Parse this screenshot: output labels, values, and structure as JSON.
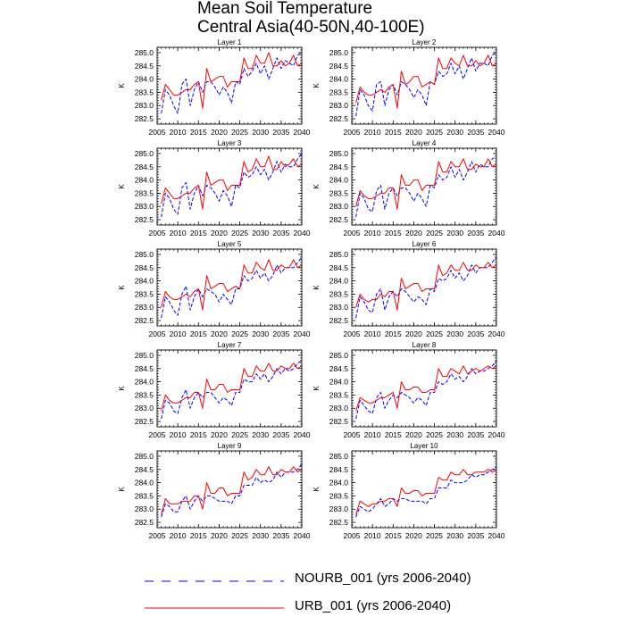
{
  "figure": {
    "title_line1": "Mean Soil Temperature",
    "title_line2": "Central Asia(40-50N,40-100E)"
  },
  "colors": {
    "nourb": "#0000ff",
    "urb": "#ff0000",
    "axis": "#000000"
  },
  "legend": [
    {
      "label": "NOURB_001 (yrs 2006-2040)",
      "color": "#0000ff",
      "style": "dashed"
    },
    {
      "label": "URB_001 (yrs 2006-2040)",
      "color": "#ff0000",
      "style": "solid"
    }
  ],
  "chart_data": {
    "type": "line",
    "x": [
      2006,
      2007,
      2008,
      2009,
      2010,
      2011,
      2012,
      2013,
      2014,
      2015,
      2016,
      2017,
      2018,
      2019,
      2020,
      2021,
      2022,
      2023,
      2024,
      2025,
      2026,
      2027,
      2028,
      2029,
      2030,
      2031,
      2032,
      2033,
      2034,
      2035,
      2036,
      2037,
      2038,
      2039,
      2040
    ],
    "xlim": [
      2005,
      2040
    ],
    "xticks": [
      2005,
      2010,
      2015,
      2020,
      2025,
      2030,
      2035,
      2040
    ],
    "ylim": [
      282.3,
      285.2
    ],
    "yticks": [
      282.5,
      283.0,
      283.5,
      284.0,
      284.5,
      285.0
    ],
    "ylabel": "K",
    "panels": [
      {
        "title": "Layer 1",
        "series": [
          {
            "name": "NOURB_001",
            "values": [
              282.7,
              283.6,
              283.4,
              283.0,
              282.7,
              283.8,
              284.0,
              283.0,
              283.6,
              283.9,
              283.5,
              283.9,
              283.9,
              283.7,
              283.4,
              283.7,
              283.5,
              283.1,
              283.9,
              283.8,
              284.4,
              284.1,
              284.3,
              284.6,
              284.2,
              284.5,
              284.0,
              284.4,
              284.8,
              284.4,
              284.7,
              284.6,
              284.5,
              284.9,
              285.0
            ]
          },
          {
            "name": "URB_001",
            "values": [
              283.2,
              283.8,
              283.6,
              283.4,
              283.4,
              283.5,
              283.6,
              283.6,
              283.8,
              283.9,
              282.9,
              284.4,
              283.9,
              284.0,
              284.1,
              284.1,
              283.7,
              283.9,
              283.9,
              283.9,
              284.8,
              284.4,
              284.4,
              284.9,
              284.6,
              284.6,
              285.0,
              284.5,
              284.5,
              284.7,
              284.5,
              284.6,
              284.9,
              284.5,
              284.6
            ]
          }
        ]
      },
      {
        "title": "Layer 2",
        "series": [
          {
            "name": "NOURB_001",
            "values": [
              282.6,
              283.6,
              283.4,
              283.0,
              282.8,
              283.8,
              283.9,
              283.0,
              283.6,
              283.8,
              283.4,
              283.9,
              283.8,
              283.6,
              283.3,
              283.6,
              283.4,
              283.0,
              283.9,
              283.8,
              284.3,
              284.1,
              284.2,
              284.6,
              284.2,
              284.5,
              284.0,
              284.4,
              284.8,
              284.3,
              284.6,
              284.6,
              284.5,
              284.9,
              285.0
            ]
          },
          {
            "name": "URB_001",
            "values": [
              283.1,
              283.7,
              283.5,
              283.4,
              283.4,
              283.5,
              283.6,
              283.5,
              283.7,
              283.8,
              282.9,
              284.3,
              283.8,
              283.9,
              284.1,
              284.1,
              283.7,
              283.8,
              283.9,
              283.8,
              284.8,
              284.4,
              284.4,
              284.8,
              284.6,
              284.5,
              284.9,
              284.5,
              284.5,
              284.7,
              284.5,
              284.6,
              284.9,
              284.5,
              284.6
            ]
          }
        ]
      },
      {
        "title": "Layer 3",
        "series": [
          {
            "name": "NOURB_001",
            "values": [
              282.6,
              283.5,
              283.3,
              282.9,
              282.7,
              283.7,
              283.9,
              282.9,
              283.5,
              283.8,
              283.4,
              283.8,
              283.7,
              283.5,
              283.2,
              283.6,
              283.4,
              283.0,
              283.8,
              283.7,
              284.3,
              284.1,
              284.2,
              284.5,
              284.2,
              284.4,
              284.0,
              284.3,
              284.7,
              284.3,
              284.6,
              284.5,
              284.5,
              284.8,
              285.0
            ]
          },
          {
            "name": "URB_001",
            "values": [
              283.1,
              283.7,
              283.5,
              283.3,
              283.3,
              283.4,
              283.5,
              283.5,
              283.7,
              283.8,
              282.9,
              284.3,
              283.8,
              283.9,
              284.0,
              284.0,
              283.6,
              283.8,
              283.8,
              283.8,
              284.7,
              284.3,
              284.4,
              284.8,
              284.5,
              284.5,
              284.9,
              284.4,
              284.4,
              284.7,
              284.5,
              284.6,
              284.8,
              284.5,
              284.6
            ]
          }
        ]
      },
      {
        "title": "Layer 4",
        "series": [
          {
            "name": "NOURB_001",
            "values": [
              282.6,
              283.5,
              283.3,
              282.9,
              282.8,
              283.6,
              283.8,
              282.9,
              283.5,
              283.7,
              283.4,
              283.7,
              283.7,
              283.5,
              283.2,
              283.5,
              283.3,
              283.0,
              283.8,
              283.7,
              284.2,
              284.0,
              284.1,
              284.5,
              284.1,
              284.4,
              284.0,
              284.3,
              284.7,
              284.3,
              284.6,
              284.5,
              284.5,
              284.8,
              284.9
            ]
          },
          {
            "name": "URB_001",
            "values": [
              283.0,
              283.6,
              283.4,
              283.3,
              283.3,
              283.4,
              283.5,
              283.5,
              283.7,
              283.7,
              282.9,
              284.2,
              283.8,
              283.8,
              284.0,
              284.0,
              283.6,
              283.8,
              283.8,
              283.8,
              284.7,
              284.3,
              284.3,
              284.7,
              284.5,
              284.5,
              284.8,
              284.4,
              284.4,
              284.6,
              284.5,
              284.5,
              284.8,
              284.5,
              284.6
            ]
          }
        ]
      },
      {
        "title": "Layer 5",
        "series": [
          {
            "name": "NOURB_001",
            "values": [
              282.6,
              283.4,
              283.2,
              282.9,
              282.7,
              283.5,
              283.8,
              282.9,
              283.4,
              283.7,
              283.4,
              283.7,
              283.6,
              283.5,
              283.2,
              283.5,
              283.3,
              283.1,
              283.7,
              283.7,
              284.2,
              284.0,
              284.1,
              284.4,
              284.1,
              284.3,
              284.0,
              284.2,
              284.6,
              284.3,
              284.5,
              284.5,
              284.5,
              284.7,
              284.9
            ]
          },
          {
            "name": "URB_001",
            "values": [
              283.0,
              283.6,
              283.4,
              283.3,
              283.3,
              283.4,
              283.5,
              283.4,
              283.6,
              283.7,
              282.9,
              284.2,
              283.7,
              283.8,
              283.9,
              283.9,
              283.6,
              283.7,
              283.8,
              283.7,
              284.6,
              284.3,
              284.3,
              284.7,
              284.5,
              284.4,
              284.8,
              284.4,
              284.4,
              284.6,
              284.5,
              284.5,
              284.8,
              284.5,
              284.6
            ]
          }
        ]
      },
      {
        "title": "Layer 6",
        "series": [
          {
            "name": "NOURB_001",
            "values": [
              282.6,
              283.4,
              283.2,
              282.9,
              282.8,
              283.5,
              283.7,
              282.9,
              283.4,
              283.6,
              283.4,
              283.7,
              283.6,
              283.4,
              283.2,
              283.4,
              283.3,
              283.1,
              283.7,
              283.6,
              284.1,
              284.0,
              284.1,
              284.4,
              284.1,
              284.3,
              284.0,
              284.2,
              284.6,
              284.3,
              284.5,
              284.5,
              284.5,
              284.7,
              284.9
            ]
          },
          {
            "name": "URB_001",
            "values": [
              283.0,
              283.5,
              283.3,
              283.2,
              283.3,
              283.3,
              283.5,
              283.4,
              283.6,
              283.6,
              282.9,
              284.1,
              283.7,
              283.8,
              283.9,
              283.9,
              283.6,
              283.7,
              283.7,
              283.7,
              284.6,
              284.2,
              284.3,
              284.6,
              284.4,
              284.4,
              284.7,
              284.4,
              284.4,
              284.6,
              284.5,
              284.5,
              284.7,
              284.5,
              284.6
            ]
          }
        ]
      },
      {
        "title": "Layer 7",
        "series": [
          {
            "name": "NOURB_001",
            "values": [
              282.6,
              283.3,
              283.2,
              282.9,
              282.8,
              283.4,
              283.7,
              283.0,
              283.4,
              283.6,
              283.4,
              283.6,
              283.6,
              283.4,
              283.2,
              283.4,
              283.3,
              283.1,
              283.6,
              283.6,
              284.1,
              284.0,
              284.0,
              284.3,
              284.1,
              284.3,
              284.0,
              284.2,
              284.5,
              284.3,
              284.5,
              284.4,
              284.5,
              284.7,
              284.8
            ]
          },
          {
            "name": "URB_001",
            "values": [
              282.9,
              283.5,
              283.3,
              283.2,
              283.2,
              283.3,
              283.4,
              283.4,
              283.6,
              283.6,
              283.0,
              284.1,
              283.7,
              283.7,
              283.9,
              283.9,
              283.6,
              283.7,
              283.7,
              283.7,
              284.5,
              284.2,
              284.2,
              284.6,
              284.4,
              284.4,
              284.7,
              284.4,
              284.4,
              284.6,
              284.5,
              284.5,
              284.7,
              284.5,
              284.6
            ]
          }
        ]
      },
      {
        "title": "Layer 8",
        "series": [
          {
            "name": "NOURB_001",
            "values": [
              282.6,
              283.3,
              283.1,
              282.9,
              282.8,
              283.4,
              283.6,
              283.0,
              283.3,
              283.5,
              283.4,
              283.6,
              283.5,
              283.4,
              283.2,
              283.4,
              283.3,
              283.1,
              283.6,
              283.6,
              284.0,
              283.9,
              284.0,
              284.3,
              284.1,
              284.2,
              284.0,
              284.2,
              284.5,
              284.3,
              284.4,
              284.4,
              284.5,
              284.6,
              284.8
            ]
          },
          {
            "name": "URB_001",
            "values": [
              282.9,
              283.4,
              283.3,
              283.2,
              283.2,
              283.3,
              283.4,
              283.4,
              283.5,
              283.6,
              283.0,
              284.0,
              283.7,
              283.7,
              283.8,
              283.8,
              283.6,
              283.6,
              283.7,
              283.7,
              284.5,
              284.2,
              284.2,
              284.5,
              284.4,
              284.3,
              284.6,
              284.3,
              284.4,
              284.5,
              284.4,
              284.5,
              284.6,
              284.5,
              284.6
            ]
          }
        ]
      },
      {
        "title": "Layer 9",
        "series": [
          {
            "name": "NOURB_001",
            "values": [
              282.7,
              283.2,
              283.1,
              282.9,
              282.9,
              283.3,
              283.5,
              283.0,
              283.3,
              283.5,
              283.3,
              283.5,
              283.5,
              283.4,
              283.3,
              283.3,
              283.3,
              283.2,
              283.5,
              283.5,
              283.9,
              283.9,
              283.9,
              284.2,
              284.0,
              284.1,
              284.0,
              284.1,
              284.4,
              284.2,
              284.4,
              284.4,
              284.4,
              284.5,
              284.7
            ]
          },
          {
            "name": "URB_001",
            "values": [
              282.8,
              283.4,
              283.2,
              283.2,
              283.2,
              283.3,
              283.3,
              283.3,
              283.5,
              283.5,
              283.0,
              284.0,
              283.6,
              283.6,
              283.8,
              283.8,
              283.5,
              283.6,
              283.6,
              283.6,
              284.4,
              284.1,
              284.2,
              284.5,
              284.3,
              284.3,
              284.6,
              284.3,
              284.3,
              284.5,
              284.4,
              284.4,
              284.6,
              284.4,
              284.5
            ]
          }
        ]
      },
      {
        "title": "Layer 10",
        "series": [
          {
            "name": "NOURB_001",
            "values": [
              282.7,
              283.1,
              283.0,
              282.9,
              283.0,
              283.2,
              283.4,
              283.1,
              283.2,
              283.4,
              283.3,
              283.4,
              283.4,
              283.3,
              283.3,
              283.3,
              283.3,
              283.2,
              283.4,
              283.4,
              283.8,
              283.8,
              283.8,
              284.1,
              284.0,
              284.0,
              284.0,
              284.1,
              284.3,
              284.2,
              284.3,
              284.3,
              284.4,
              284.5,
              284.6
            ]
          },
          {
            "name": "URB_001",
            "values": [
              282.8,
              283.3,
              283.2,
              283.1,
              283.2,
              283.2,
              283.3,
              283.3,
              283.4,
              283.4,
              283.1,
              283.8,
              283.6,
              283.6,
              283.7,
              283.7,
              283.5,
              283.6,
              283.6,
              283.6,
              284.2,
              284.1,
              284.1,
              284.4,
              284.3,
              284.3,
              284.5,
              284.3,
              284.3,
              284.4,
              284.4,
              284.4,
              284.5,
              284.4,
              284.5
            ]
          }
        ]
      }
    ]
  }
}
